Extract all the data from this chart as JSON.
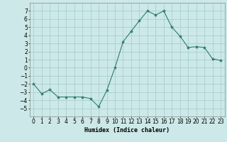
{
  "x": [
    0,
    1,
    2,
    3,
    4,
    5,
    6,
    7,
    8,
    9,
    10,
    11,
    12,
    13,
    14,
    15,
    16,
    17,
    18,
    19,
    20,
    21,
    22,
    23
  ],
  "y": [
    -2,
    -3.2,
    -2.7,
    -3.6,
    -3.6,
    -3.6,
    -3.6,
    -3.8,
    -4.8,
    -2.8,
    0,
    3.2,
    4.5,
    5.8,
    7.0,
    6.5,
    7.0,
    5.0,
    3.9,
    2.5,
    2.6,
    2.5,
    1.1,
    0.9
  ],
  "line_color": "#2e7d6e",
  "marker": "*",
  "marker_size": 3,
  "bg_color": "#cce8e8",
  "grid_color": "#aacfcf",
  "xlabel": "Humidex (Indice chaleur)",
  "xlabel_fontsize": 6,
  "tick_fontsize": 5.5,
  "ylim": [
    -6,
    8
  ],
  "xlim": [
    -0.5,
    23.5
  ],
  "yticks": [
    -5,
    -4,
    -3,
    -2,
    -1,
    0,
    1,
    2,
    3,
    4,
    5,
    6,
    7
  ],
  "xticks": [
    0,
    1,
    2,
    3,
    4,
    5,
    6,
    7,
    8,
    9,
    10,
    11,
    12,
    13,
    14,
    15,
    16,
    17,
    18,
    19,
    20,
    21,
    22,
    23
  ]
}
